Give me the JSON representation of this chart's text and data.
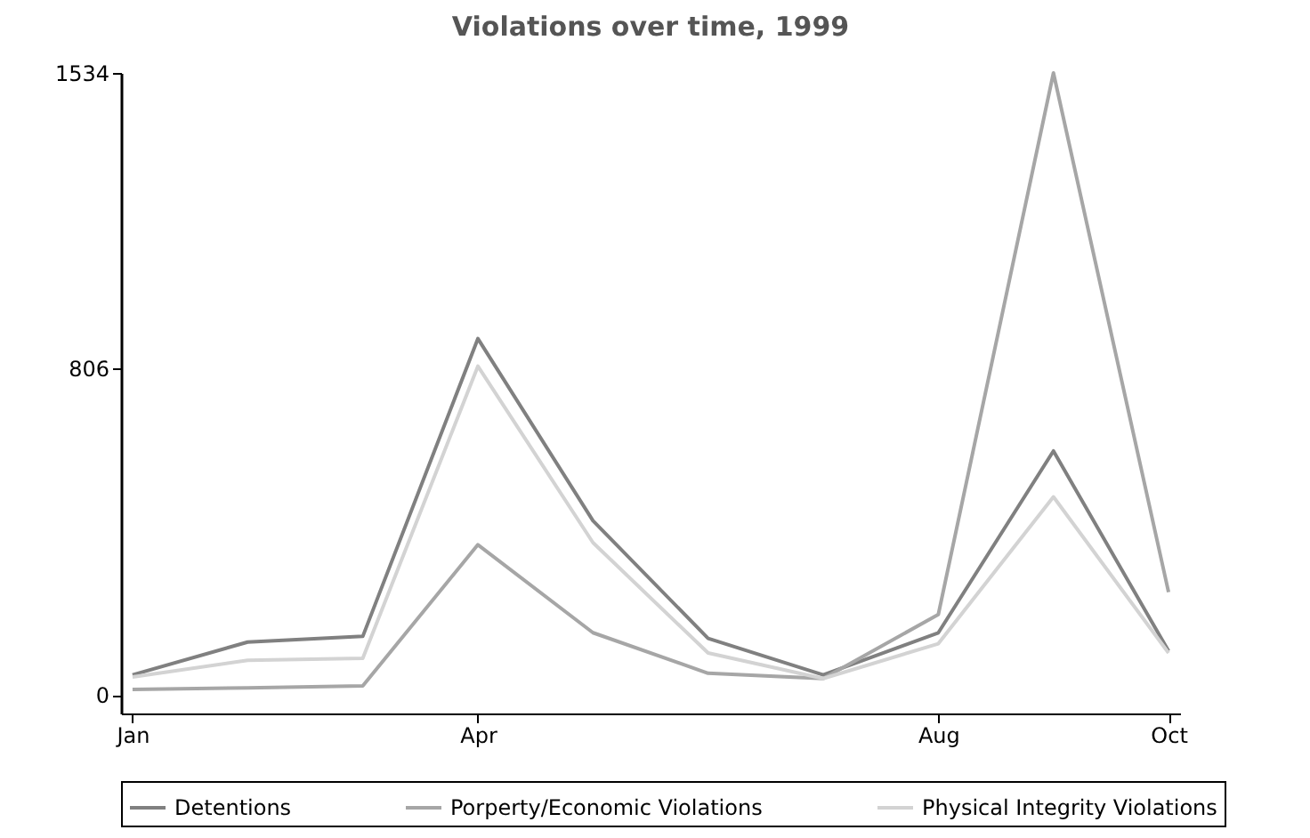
{
  "chart_data": {
    "type": "line",
    "title": "Violations over time, 1999",
    "categories": [
      "Jan",
      null,
      null,
      "Apr",
      null,
      null,
      null,
      "Aug",
      null,
      "Oct"
    ],
    "series": [
      {
        "name": "Detentions",
        "color": "#808080",
        "values": [
          50,
          131,
          145,
          879,
          430,
          140,
          50,
          154,
          602,
          109
        ]
      },
      {
        "name": "Porperty/Economic Violations",
        "color": "#a6a6a6",
        "values": [
          14,
          18,
          23,
          371,
          154,
          54,
          41,
          199,
          1534,
          254
        ]
      },
      {
        "name": "Physical Integrity Violations",
        "color": "#d3d3d3",
        "values": [
          45,
          86,
          91,
          811,
          376,
          104,
          41,
          127,
          489,
          104
        ]
      }
    ],
    "ylim": [
      -45,
      1534
    ],
    "yticks": [
      0,
      806,
      1534
    ],
    "grid": false,
    "legend": "bottom",
    "marker": "none",
    "line_style": "solid"
  }
}
